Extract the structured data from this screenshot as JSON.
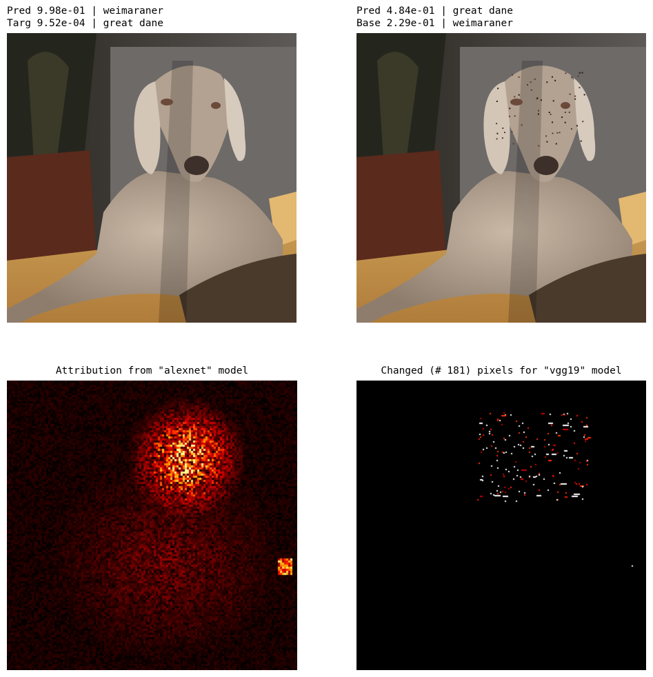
{
  "panels": {
    "original": {
      "line1": "Pred 9.98e-01 | weimaraner",
      "line2": "Targ 9.52e-04 | great dane"
    },
    "adversarial": {
      "line1": "Pred 4.84e-01 | great dane",
      "line2": "Base 2.29e-01 | weimaraner"
    },
    "attribution": {
      "title": "Attribution from \"alexnet\" model"
    },
    "changed": {
      "title": "Changed (# 181) pixels for \"vgg19\" model"
    }
  }
}
